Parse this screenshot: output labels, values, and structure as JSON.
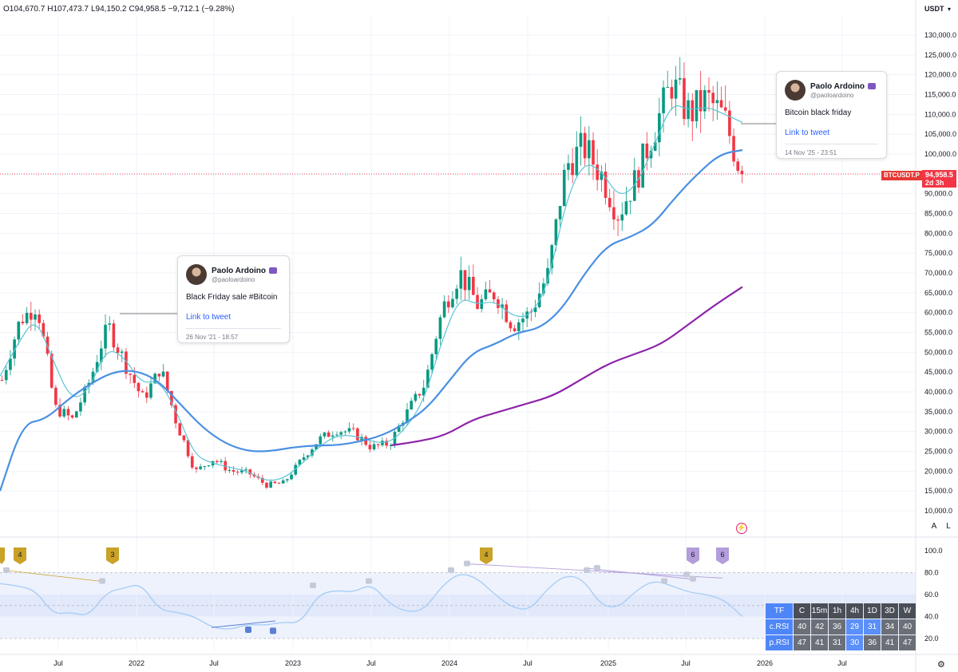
{
  "header": {
    "open": "O104,670.7",
    "high": "H107,473.7",
    "low": "L94,150.2",
    "close": "C94,958.5",
    "change": "−9,712.1 (−9.28%)",
    "currency": "USDT"
  },
  "price_tag": {
    "symbol": "BTCUSDT.P",
    "value": "94,958.5",
    "countdown": "2d 3h"
  },
  "tweets": [
    {
      "name": "Paolo Ardoino",
      "handle": "@paoloardoino",
      "text": "Black Friday sale #Bitcoin",
      "link": "Link to tweet",
      "date": "26 Nov '21 - 18:57"
    },
    {
      "name": "Paolo Ardoino",
      "handle": "@paoloardoino",
      "text": "Bitcoin black friday",
      "link": "Link to tweet",
      "date": "14 Nov '25 - 23:51"
    }
  ],
  "axis_buttons": {
    "auto": "A",
    "log": "L"
  },
  "rsi_table": {
    "headers": [
      "TF",
      "C",
      "15m",
      "1h",
      "4h",
      "1D",
      "3D",
      "W"
    ],
    "rows": [
      {
        "label": "c.RSI",
        "values": [
          "40",
          "42",
          "36",
          "29",
          "31",
          "34",
          "40"
        ]
      },
      {
        "label": "p.RSI",
        "values": [
          "47",
          "41",
          "31",
          "30",
          "36",
          "41",
          "47"
        ]
      }
    ]
  },
  "colors": {
    "up": "#089981",
    "down": "#f23645",
    "ema_fast": "#5bc4d6",
    "ema_mid": "#4a90e2",
    "ema_slow": "#8e24aa",
    "rsi": "#a8cef5",
    "divergence_bear": "#b39ddb",
    "divergence_bull": "#5c7fd6",
    "badge_gold": "#c9a227",
    "badge_purple": "#b39ddb"
  },
  "chart_data": [
    {
      "type": "candlestick",
      "title": "BTCUSDT.P",
      "x_axis_labels": [
        "Jul",
        "2022",
        "Jul",
        "2023",
        "Jul",
        "2024",
        "Jul",
        "2025",
        "Jul",
        "2026",
        "Jul"
      ],
      "y_ticks": [
        "130,000.0",
        "125,000.0",
        "120,000.0",
        "115,000.0",
        "110,000.0",
        "105,000.0",
        "100,000.0",
        "95,000.0",
        "90,000.0",
        "85,000.0",
        "80,000.0",
        "75,000.0",
        "70,000.0",
        "65,000.0",
        "60,000.0",
        "55,000.0",
        "50,000.0",
        "45,000.0",
        "40,000.0",
        "35,000.0",
        "30,000.0",
        "25,000.0",
        "20,000.0",
        "15,000.0",
        "10,000.0"
      ],
      "ylim": [
        10000,
        130000
      ],
      "last_price": 94958.5,
      "close_series": [
        43000,
        58000,
        62000,
        36000,
        33000,
        43000,
        57000,
        47000,
        38000,
        46000,
        31000,
        20000,
        23000,
        20000,
        19500,
        16500,
        17000,
        23000,
        28000,
        30500,
        29500,
        26000,
        27000,
        35000,
        42000,
        61000,
        70000,
        62000,
        65000,
        57000,
        60000,
        70000,
        97000,
        102000,
        95000,
        85000,
        94000,
        106000,
        118000,
        110000,
        114000,
        109000,
        95000
      ],
      "ema_fast": [
        44000,
        52000,
        59000,
        48000,
        38000,
        40000,
        51000,
        49000,
        42000,
        43000,
        35000,
        24000,
        22000,
        21000,
        20000,
        17500,
        18000,
        21500,
        26000,
        29000,
        29000,
        27500,
        27000,
        31000,
        38000,
        53000,
        64000,
        62000,
        63000,
        59000,
        59000,
        67000,
        88000,
        98000,
        96000,
        89000,
        92000,
        102000,
        113000,
        111000,
        112000,
        110000,
        108000
      ],
      "ema_mid": [
        15000,
        32000,
        33000,
        38000,
        42000,
        45000,
        45500,
        43000,
        37000,
        31000,
        27000,
        25000,
        25000,
        26000,
        26500,
        26500,
        27500,
        29000,
        32000,
        36000,
        43000,
        50000,
        52000,
        55000,
        56000,
        61000,
        70000,
        77000,
        79000,
        82000,
        89000,
        95000,
        100000,
        101000
      ],
      "ema_slow": [
        26500,
        27500,
        29000,
        33000,
        35000,
        37000,
        39000,
        43000,
        47000,
        49500,
        52000,
        57000,
        62000,
        66500
      ],
      "rsi": {
        "ylim": [
          0,
          100
        ],
        "y_ticks": [
          "100.0",
          "80.0",
          "60.0",
          "40.0",
          "20.0"
        ],
        "levels": [
          80,
          50,
          20
        ],
        "values": [
          70,
          68,
          64,
          42,
          44,
          40,
          62,
          66,
          70,
          46,
          44,
          40,
          30,
          28,
          33,
          32,
          35,
          34,
          60,
          64,
          62,
          70,
          52,
          44,
          46,
          68,
          80,
          75,
          60,
          48,
          46,
          66,
          78,
          74,
          50,
          48,
          64,
          73,
          68,
          62,
          60,
          55,
          40
        ],
        "badges": [
          "4",
          "3",
          "4",
          "6",
          "6"
        ]
      }
    }
  ]
}
